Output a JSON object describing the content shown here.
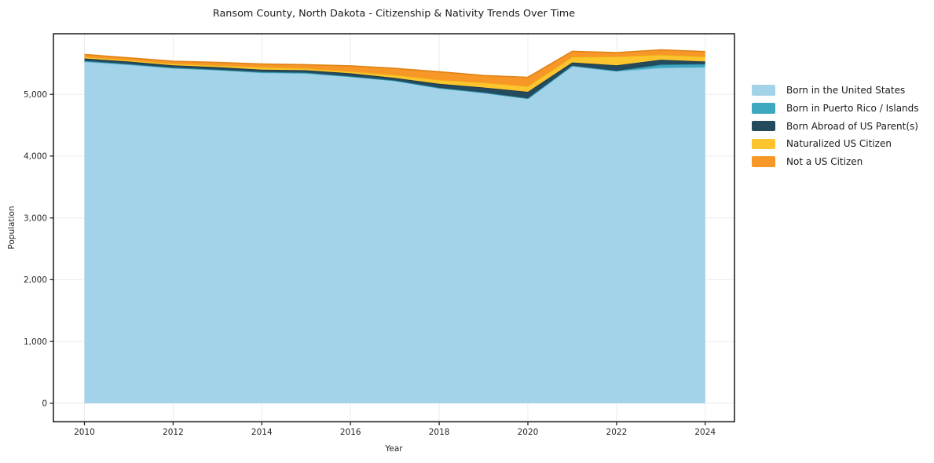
{
  "figure": {
    "background": "#ffffff"
  },
  "chart": {
    "title": "Ransom County, North Dakota - Citizenship & Nativity Trends Over Time",
    "xlabel": "Year",
    "ylabel": "Population"
  },
  "colors": {
    "grid": "#ececec",
    "spine": "#1a1a1a",
    "tick": "#1a1a1a",
    "tick_label": "#262626",
    "background": "#ffffff"
  },
  "chart_data": {
    "type": "area",
    "stacked": true,
    "title": "Ransom County, North Dakota - Citizenship & Nativity Trends Over Time",
    "xlabel": "Year",
    "ylabel": "Population",
    "grid": true,
    "legend_position": "right-outside",
    "x": [
      2010,
      2011,
      2012,
      2013,
      2014,
      2015,
      2016,
      2017,
      2018,
      2019,
      2020,
      2021,
      2022,
      2023,
      2024
    ],
    "series": [
      {
        "name": "Born in the United States",
        "color": "#a3d3e8",
        "edge": "#74b9d8",
        "values": [
          5530,
          5480,
          5425,
          5395,
          5350,
          5340,
          5285,
          5220,
          5100,
          5025,
          4930,
          5455,
          5375,
          5430,
          5440
        ]
      },
      {
        "name": "Born in Puerto Rico / Islands",
        "color": "#3ea8c0",
        "edge": "#2f93ab",
        "values": [
          10,
          10,
          5,
          5,
          10,
          10,
          5,
          5,
          5,
          5,
          5,
          10,
          5,
          50,
          50
        ]
      },
      {
        "name": "Born Abroad of US Parent(s)",
        "color": "#234a5d",
        "edge": "#1c3a4d",
        "values": [
          40,
          40,
          40,
          40,
          40,
          40,
          50,
          40,
          65,
          80,
          105,
          50,
          90,
          80,
          40
        ]
      },
      {
        "name": "Naturalized US Citizen",
        "color": "#fcc42d",
        "edge": "#edaf14",
        "values": [
          25,
          25,
          25,
          30,
          40,
          30,
          30,
          50,
          65,
          80,
          90,
          90,
          140,
          80,
          80
        ]
      },
      {
        "name": "Not a US Citizen",
        "color": "#f79728",
        "edge": "#e08214",
        "values": [
          40,
          35,
          40,
          45,
          50,
          60,
          90,
          105,
          130,
          115,
          145,
          90,
          65,
          80,
          80
        ]
      }
    ],
    "xlim": [
      2009.3,
      2024.66
    ],
    "ylim": [
      -300,
      5980
    ],
    "x_ticks": [
      2010,
      2012,
      2014,
      2016,
      2018,
      2020,
      2022,
      2024
    ],
    "x_tick_labels": [
      "2010",
      "2012",
      "2014",
      "2016",
      "2018",
      "2020",
      "2022",
      "2024"
    ],
    "y_ticks": [
      0,
      1000,
      2000,
      3000,
      4000,
      5000
    ],
    "y_tick_labels": [
      "0",
      "1,000",
      "2,000",
      "3,000",
      "4,000",
      "5,000"
    ]
  }
}
